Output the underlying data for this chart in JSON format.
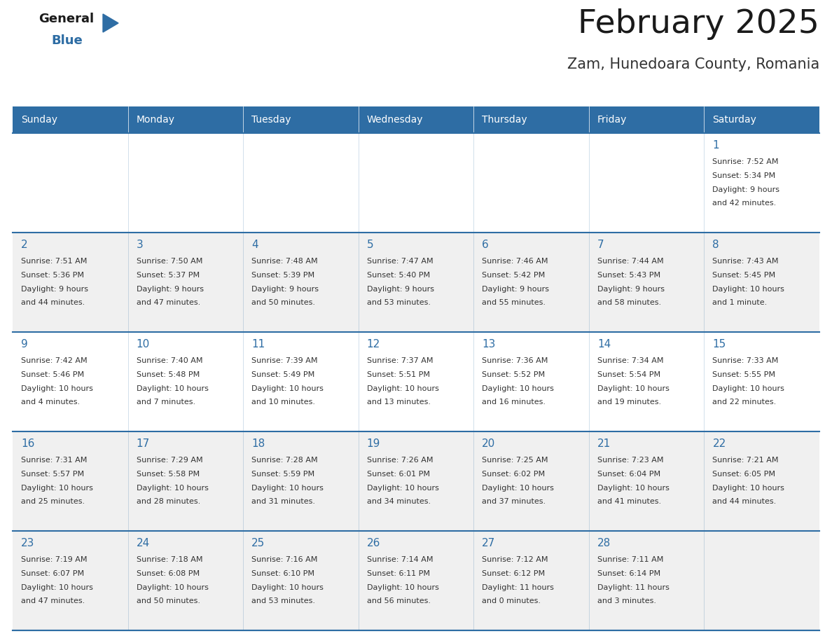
{
  "title": "February 2025",
  "subtitle": "Zam, Hunedoara County, Romania",
  "days_of_week": [
    "Sunday",
    "Monday",
    "Tuesday",
    "Wednesday",
    "Thursday",
    "Friday",
    "Saturday"
  ],
  "header_bg": "#2E6DA4",
  "header_text": "#FFFFFF",
  "cell_bg_white": "#FFFFFF",
  "cell_bg_gray": "#F0F0F0",
  "cell_text": "#333333",
  "day_num_color": "#2E6DA4",
  "grid_line_color": "#2E6DA4",
  "title_color": "#1a1a1a",
  "subtitle_color": "#333333",
  "logo_text_color": "#1a1a1a",
  "logo_blue_color": "#2E6DA4",
  "weeks": [
    {
      "days": [
        {
          "date": null,
          "info": null
        },
        {
          "date": null,
          "info": null
        },
        {
          "date": null,
          "info": null
        },
        {
          "date": null,
          "info": null
        },
        {
          "date": null,
          "info": null
        },
        {
          "date": null,
          "info": null
        },
        {
          "date": 1,
          "info": "Sunrise: 7:52 AM\nSunset: 5:34 PM\nDaylight: 9 hours\nand 42 minutes."
        }
      ]
    },
    {
      "days": [
        {
          "date": 2,
          "info": "Sunrise: 7:51 AM\nSunset: 5:36 PM\nDaylight: 9 hours\nand 44 minutes."
        },
        {
          "date": 3,
          "info": "Sunrise: 7:50 AM\nSunset: 5:37 PM\nDaylight: 9 hours\nand 47 minutes."
        },
        {
          "date": 4,
          "info": "Sunrise: 7:48 AM\nSunset: 5:39 PM\nDaylight: 9 hours\nand 50 minutes."
        },
        {
          "date": 5,
          "info": "Sunrise: 7:47 AM\nSunset: 5:40 PM\nDaylight: 9 hours\nand 53 minutes."
        },
        {
          "date": 6,
          "info": "Sunrise: 7:46 AM\nSunset: 5:42 PM\nDaylight: 9 hours\nand 55 minutes."
        },
        {
          "date": 7,
          "info": "Sunrise: 7:44 AM\nSunset: 5:43 PM\nDaylight: 9 hours\nand 58 minutes."
        },
        {
          "date": 8,
          "info": "Sunrise: 7:43 AM\nSunset: 5:45 PM\nDaylight: 10 hours\nand 1 minute."
        }
      ]
    },
    {
      "days": [
        {
          "date": 9,
          "info": "Sunrise: 7:42 AM\nSunset: 5:46 PM\nDaylight: 10 hours\nand 4 minutes."
        },
        {
          "date": 10,
          "info": "Sunrise: 7:40 AM\nSunset: 5:48 PM\nDaylight: 10 hours\nand 7 minutes."
        },
        {
          "date": 11,
          "info": "Sunrise: 7:39 AM\nSunset: 5:49 PM\nDaylight: 10 hours\nand 10 minutes."
        },
        {
          "date": 12,
          "info": "Sunrise: 7:37 AM\nSunset: 5:51 PM\nDaylight: 10 hours\nand 13 minutes."
        },
        {
          "date": 13,
          "info": "Sunrise: 7:36 AM\nSunset: 5:52 PM\nDaylight: 10 hours\nand 16 minutes."
        },
        {
          "date": 14,
          "info": "Sunrise: 7:34 AM\nSunset: 5:54 PM\nDaylight: 10 hours\nand 19 minutes."
        },
        {
          "date": 15,
          "info": "Sunrise: 7:33 AM\nSunset: 5:55 PM\nDaylight: 10 hours\nand 22 minutes."
        }
      ]
    },
    {
      "days": [
        {
          "date": 16,
          "info": "Sunrise: 7:31 AM\nSunset: 5:57 PM\nDaylight: 10 hours\nand 25 minutes."
        },
        {
          "date": 17,
          "info": "Sunrise: 7:29 AM\nSunset: 5:58 PM\nDaylight: 10 hours\nand 28 minutes."
        },
        {
          "date": 18,
          "info": "Sunrise: 7:28 AM\nSunset: 5:59 PM\nDaylight: 10 hours\nand 31 minutes."
        },
        {
          "date": 19,
          "info": "Sunrise: 7:26 AM\nSunset: 6:01 PM\nDaylight: 10 hours\nand 34 minutes."
        },
        {
          "date": 20,
          "info": "Sunrise: 7:25 AM\nSunset: 6:02 PM\nDaylight: 10 hours\nand 37 minutes."
        },
        {
          "date": 21,
          "info": "Sunrise: 7:23 AM\nSunset: 6:04 PM\nDaylight: 10 hours\nand 41 minutes."
        },
        {
          "date": 22,
          "info": "Sunrise: 7:21 AM\nSunset: 6:05 PM\nDaylight: 10 hours\nand 44 minutes."
        }
      ]
    },
    {
      "days": [
        {
          "date": 23,
          "info": "Sunrise: 7:19 AM\nSunset: 6:07 PM\nDaylight: 10 hours\nand 47 minutes."
        },
        {
          "date": 24,
          "info": "Sunrise: 7:18 AM\nSunset: 6:08 PM\nDaylight: 10 hours\nand 50 minutes."
        },
        {
          "date": 25,
          "info": "Sunrise: 7:16 AM\nSunset: 6:10 PM\nDaylight: 10 hours\nand 53 minutes."
        },
        {
          "date": 26,
          "info": "Sunrise: 7:14 AM\nSunset: 6:11 PM\nDaylight: 10 hours\nand 56 minutes."
        },
        {
          "date": 27,
          "info": "Sunrise: 7:12 AM\nSunset: 6:12 PM\nDaylight: 11 hours\nand 0 minutes."
        },
        {
          "date": 28,
          "info": "Sunrise: 7:11 AM\nSunset: 6:14 PM\nDaylight: 11 hours\nand 3 minutes."
        },
        {
          "date": null,
          "info": null
        }
      ]
    }
  ]
}
